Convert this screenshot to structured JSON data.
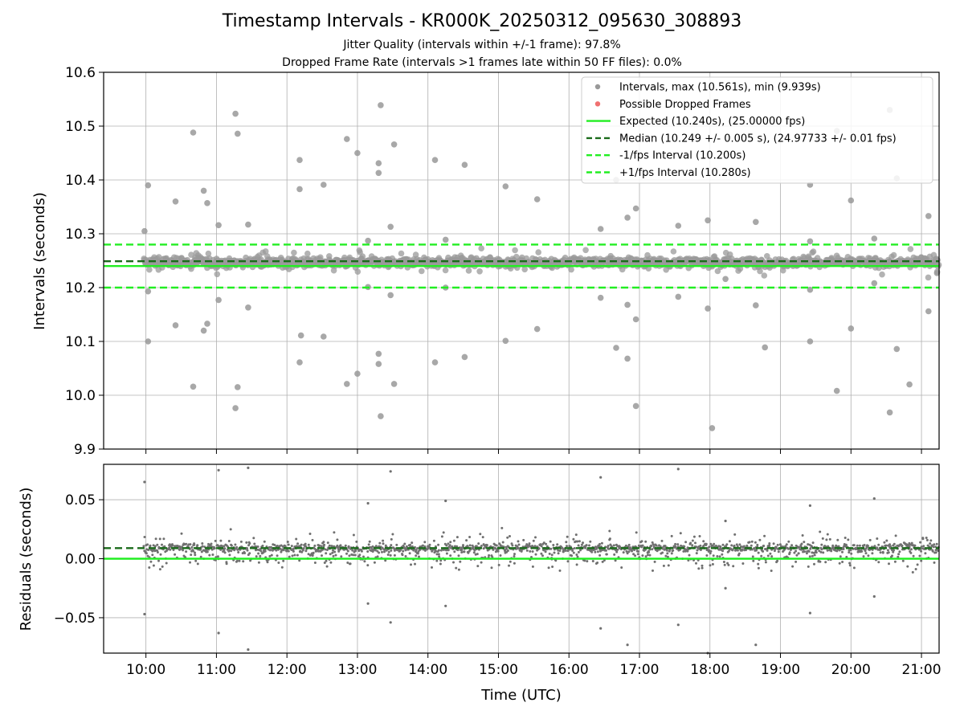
{
  "chart_data": [
    {
      "type": "scatter",
      "title": "Timestamp Intervals - KR000K_20250312_095630_308893",
      "subtitles": [
        "Jitter Quality (intervals within +/-1 frame): 97.8%",
        "Dropped Frame Rate (intervals >1 frames late within 50 FF files): 0.0%"
      ],
      "xlabel": "",
      "ylabel": "Intervals (seconds)",
      "xlim": [
        9.4,
        21.25
      ],
      "ylim": [
        9.9,
        10.6
      ],
      "yticks": [
        "10.6",
        "10.5",
        "10.4",
        "10.3",
        "10.2",
        "10.1",
        "10.0",
        "9.9"
      ],
      "ytick_values": [
        10.6,
        10.5,
        10.4,
        10.3,
        10.2,
        10.1,
        10.0,
        9.9
      ],
      "grid": true,
      "legend_position": "top-right",
      "series": [
        {
          "name": "Intervals, max (10.561s), min (9.939s)",
          "kind": "scatter",
          "color": "#999999",
          "band_center": 10.247,
          "outliers": [
            [
              9.98,
              10.305
            ],
            [
              10.03,
              10.39
            ],
            [
              10.03,
              10.1
            ],
            [
              10.03,
              10.193
            ],
            [
              10.42,
              10.36
            ],
            [
              10.42,
              10.13
            ],
            [
              10.67,
              10.488
            ],
            [
              10.67,
              10.016
            ],
            [
              10.82,
              10.38
            ],
            [
              10.82,
              10.12
            ],
            [
              10.87,
              10.357
            ],
            [
              10.87,
              10.133
            ],
            [
              11.03,
              10.316
            ],
            [
              11.03,
              10.177
            ],
            [
              11.27,
              10.523
            ],
            [
              11.3,
              10.486
            ],
            [
              11.3,
              10.015
            ],
            [
              11.27,
              9.976
            ],
            [
              11.45,
              10.317
            ],
            [
              11.45,
              10.163
            ],
            [
              12.18,
              10.437
            ],
            [
              12.18,
              10.383
            ],
            [
              12.2,
              10.111
            ],
            [
              12.18,
              10.061
            ],
            [
              12.52,
              10.391
            ],
            [
              12.52,
              10.109
            ],
            [
              12.85,
              10.476
            ],
            [
              12.85,
              10.021
            ],
            [
              13.0,
              10.45
            ],
            [
              13.0,
              10.04
            ],
            [
              13.15,
              10.287
            ],
            [
              13.15,
              10.201
            ],
            [
              13.3,
              10.431
            ],
            [
              13.3,
              10.413
            ],
            [
              13.3,
              10.077
            ],
            [
              13.3,
              10.058
            ],
            [
              13.33,
              10.539
            ],
            [
              13.33,
              9.961
            ],
            [
              13.47,
              10.313
            ],
            [
              13.47,
              10.186
            ],
            [
              13.52,
              10.466
            ],
            [
              13.52,
              10.021
            ],
            [
              14.1,
              10.437
            ],
            [
              14.1,
              10.061
            ],
            [
              14.25,
              10.289
            ],
            [
              14.25,
              10.2
            ],
            [
              14.52,
              10.428
            ],
            [
              14.52,
              10.071
            ],
            [
              15.1,
              10.388
            ],
            [
              15.1,
              10.101
            ],
            [
              15.55,
              10.364
            ],
            [
              15.55,
              10.123
            ],
            [
              16.45,
              10.309
            ],
            [
              16.45,
              10.181
            ],
            [
              16.67,
              10.4
            ],
            [
              16.67,
              10.088
            ],
            [
              16.83,
              10.33
            ],
            [
              16.83,
              10.168
            ],
            [
              16.83,
              10.068
            ],
            [
              16.95,
              10.347
            ],
            [
              16.95,
              10.141
            ],
            [
              16.95,
              9.98
            ],
            [
              17.55,
              10.315
            ],
            [
              17.55,
              10.183
            ],
            [
              17.97,
              10.325
            ],
            [
              17.97,
              10.161
            ],
            [
              18.03,
              9.939
            ],
            [
              18.22,
              10.216
            ],
            [
              18.65,
              10.322
            ],
            [
              18.65,
              10.167
            ],
            [
              18.78,
              10.089
            ],
            [
              19.42,
              10.391
            ],
            [
              19.42,
              10.286
            ],
            [
              19.42,
              10.196
            ],
            [
              19.42,
              10.1
            ],
            [
              19.8,
              10.491
            ],
            [
              19.8,
              10.008
            ],
            [
              20.0,
              10.362
            ],
            [
              20.0,
              10.124
            ],
            [
              20.33,
              10.291
            ],
            [
              20.33,
              10.208
            ],
            [
              20.55,
              10.53
            ],
            [
              20.55,
              9.968
            ],
            [
              20.65,
              10.403
            ],
            [
              20.65,
              10.086
            ],
            [
              20.83,
              10.02
            ],
            [
              21.1,
              10.333
            ],
            [
              21.1,
              10.156
            ],
            [
              21.22,
              10.227
            ]
          ]
        },
        {
          "name": "Possible Dropped Frames",
          "kind": "scatter",
          "color": "#f07070",
          "points": []
        },
        {
          "name": "Expected (10.240s), (25.00000 fps)",
          "kind": "hline",
          "value": 10.24,
          "color": "#22ee22",
          "style": "solid"
        },
        {
          "name": "Median (10.249 +/- 0.005 s), (24.97733 +/- 0.01 fps)",
          "kind": "hline",
          "value": 10.249,
          "color": "#1a6b1a",
          "style": "dashed"
        },
        {
          "name": "-1/fps Interval (10.200s)",
          "kind": "hline",
          "value": 10.2,
          "color": "#22ee22",
          "style": "dashed"
        },
        {
          "name": "+1/fps Interval (10.280s)",
          "kind": "hline",
          "value": 10.28,
          "color": "#22ee22",
          "style": "dashed"
        }
      ]
    },
    {
      "type": "scatter",
      "xlabel": "Time (UTC)",
      "ylabel": "Residuals (seconds)",
      "xlim": [
        9.4,
        21.25
      ],
      "ylim": [
        -0.08,
        0.08
      ],
      "xticks": [
        "10:00",
        "11:00",
        "12:00",
        "13:00",
        "14:00",
        "15:00",
        "16:00",
        "17:00",
        "18:00",
        "19:00",
        "20:00",
        "21:00"
      ],
      "xtick_values": [
        10,
        11,
        12,
        13,
        14,
        15,
        16,
        17,
        18,
        19,
        20,
        21
      ],
      "yticks": [
        "0.05",
        "0.00",
        "−0.05"
      ],
      "ytick_values": [
        0.05,
        0.0,
        -0.05
      ],
      "grid": true,
      "series": [
        {
          "name": "Residuals",
          "kind": "scatter",
          "color": "#707070",
          "outliers": [
            [
              9.98,
              0.065
            ],
            [
              9.98,
              -0.047
            ],
            [
              11.03,
              0.075
            ],
            [
              11.03,
              -0.063
            ],
            [
              11.45,
              0.077
            ],
            [
              11.45,
              -0.077
            ],
            [
              13.15,
              0.047
            ],
            [
              13.15,
              -0.038
            ],
            [
              13.47,
              0.074
            ],
            [
              13.47,
              -0.054
            ],
            [
              14.25,
              0.049
            ],
            [
              14.25,
              -0.04
            ],
            [
              16.45,
              0.069
            ],
            [
              16.45,
              -0.059
            ],
            [
              16.83,
              -0.073
            ],
            [
              17.55,
              0.076
            ],
            [
              17.55,
              -0.056
            ],
            [
              17.97,
              -0.08
            ],
            [
              18.22,
              -0.025
            ],
            [
              18.22,
              0.032
            ],
            [
              18.65,
              -0.073
            ],
            [
              19.42,
              0.045
            ],
            [
              19.42,
              -0.046
            ],
            [
              20.33,
              0.051
            ],
            [
              20.33,
              -0.032
            ]
          ]
        },
        {
          "name": "Expected",
          "kind": "hline",
          "value": 0.0,
          "color": "#22ee22",
          "style": "solid"
        },
        {
          "name": "Median",
          "kind": "hline",
          "value": 0.009,
          "color": "#1a6b1a",
          "style": "dashed"
        }
      ]
    }
  ]
}
